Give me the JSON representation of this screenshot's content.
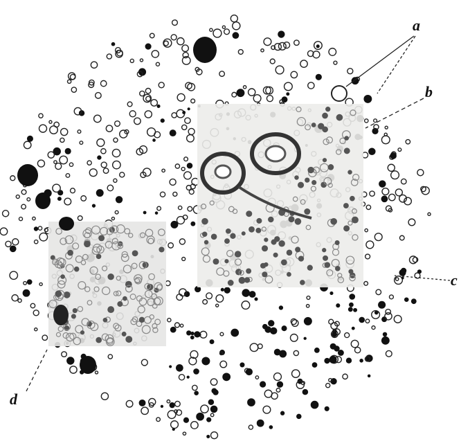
{
  "labels": {
    "a": "a",
    "b": "b",
    "c": "c",
    "d": "d"
  }
}
